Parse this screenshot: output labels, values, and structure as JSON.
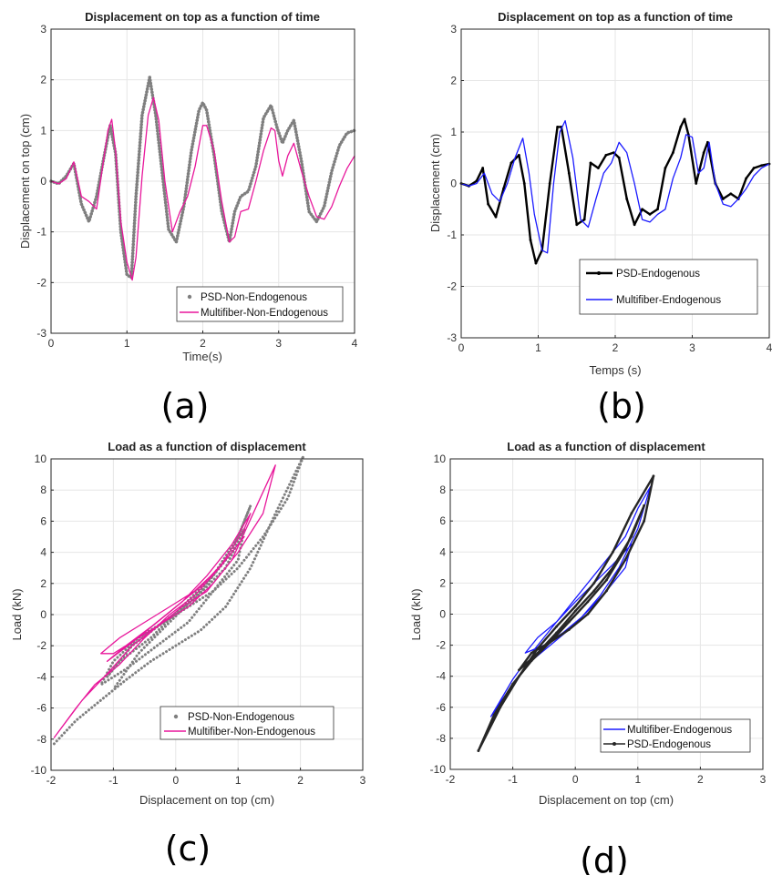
{
  "chart_data": [
    {
      "id": "a",
      "panel_label": "(a)",
      "type": "line",
      "title": "Displacement on top as a function of time",
      "xlabel": "Time(s)",
      "ylabel": "Displacement on top (cm)",
      "xlim": [
        0,
        4
      ],
      "ylim": [
        -3,
        3
      ],
      "xticks": [
        0,
        1,
        2,
        3,
        4
      ],
      "yticks": [
        -3,
        -2,
        -1,
        0,
        1,
        2,
        3
      ],
      "grid": true,
      "legend_position": "bottom-right",
      "series": [
        {
          "name": "PSD-Non-Endogenous",
          "color": "#7f7f7f",
          "style": "dotted-thick",
          "x": [
            0,
            0.1,
            0.2,
            0.3,
            0.4,
            0.5,
            0.6,
            0.7,
            0.78,
            0.85,
            0.92,
            1.0,
            1.06,
            1.12,
            1.2,
            1.3,
            1.38,
            1.47,
            1.55,
            1.65,
            1.75,
            1.85,
            1.95,
            2.0,
            2.05,
            2.15,
            2.25,
            2.35,
            2.42,
            2.5,
            2.6,
            2.7,
            2.8,
            2.9,
            2.98,
            3.05,
            3.12,
            3.2,
            3.3,
            3.4,
            3.5,
            3.6,
            3.7,
            3.8,
            3.9,
            4.0
          ],
          "values": [
            0,
            -0.05,
            0.1,
            0.35,
            -0.45,
            -0.8,
            -0.3,
            0.5,
            1.1,
            0.55,
            -1.0,
            -1.85,
            -1.9,
            -0.3,
            1.3,
            2.05,
            1.3,
            0.1,
            -0.95,
            -1.2,
            -0.5,
            0.6,
            1.4,
            1.55,
            1.4,
            0.5,
            -0.6,
            -1.2,
            -0.6,
            -0.3,
            -0.2,
            0.3,
            1.25,
            1.5,
            1.05,
            0.75,
            1.0,
            1.2,
            0.4,
            -0.6,
            -0.8,
            -0.5,
            0.2,
            0.7,
            0.95,
            1.0
          ]
        },
        {
          "name": "Multifiber-Non-Endogenous",
          "color": "#e8179b",
          "style": "solid",
          "x": [
            0,
            0.1,
            0.2,
            0.3,
            0.4,
            0.5,
            0.6,
            0.7,
            0.75,
            0.8,
            0.85,
            0.92,
            1.0,
            1.07,
            1.12,
            1.2,
            1.28,
            1.35,
            1.42,
            1.5,
            1.6,
            1.7,
            1.8,
            1.9,
            2.0,
            2.05,
            2.15,
            2.25,
            2.35,
            2.42,
            2.5,
            2.6,
            2.7,
            2.8,
            2.9,
            2.95,
            3.0,
            3.05,
            3.12,
            3.2,
            3.3,
            3.4,
            3.5,
            3.6,
            3.7,
            3.8,
            3.9,
            4.0
          ],
          "values": [
            0,
            -0.05,
            0.05,
            0.38,
            -0.3,
            -0.4,
            -0.55,
            0.5,
            1.0,
            1.22,
            0.6,
            -0.8,
            -1.6,
            -1.95,
            -1.5,
            0.1,
            1.3,
            1.65,
            1.2,
            0.0,
            -1.0,
            -0.6,
            -0.3,
            0.3,
            1.1,
            1.1,
            0.6,
            -0.4,
            -1.2,
            -1.1,
            -0.6,
            -0.55,
            0.0,
            0.6,
            1.05,
            1.0,
            0.4,
            0.1,
            0.5,
            0.75,
            0.2,
            -0.3,
            -0.7,
            -0.75,
            -0.5,
            -0.1,
            0.25,
            0.5
          ]
        }
      ]
    },
    {
      "id": "b",
      "panel_label": "(b)",
      "type": "line",
      "title": "Displacement on top as a function of time",
      "xlabel": "Temps (s)",
      "ylabel": "Displacement (cm)",
      "xlim": [
        0,
        4
      ],
      "ylim": [
        -3,
        3
      ],
      "xticks": [
        0,
        1,
        2,
        3,
        4
      ],
      "yticks": [
        -3,
        -2,
        -1,
        0,
        1,
        2,
        3
      ],
      "grid": true,
      "legend_position": "bottom-right",
      "series": [
        {
          "name": "PSD-Endogenous",
          "color": "#000000",
          "style": "solid-marker",
          "x": [
            0,
            0.1,
            0.2,
            0.28,
            0.35,
            0.45,
            0.55,
            0.65,
            0.75,
            0.82,
            0.9,
            0.97,
            1.05,
            1.15,
            1.25,
            1.3,
            1.4,
            1.5,
            1.6,
            1.68,
            1.78,
            1.88,
            1.98,
            2.05,
            2.15,
            2.25,
            2.35,
            2.45,
            2.55,
            2.65,
            2.75,
            2.85,
            2.9,
            2.95,
            3.05,
            3.15,
            3.2,
            3.3,
            3.4,
            3.5,
            3.6,
            3.7,
            3.8,
            3.9,
            4.0
          ],
          "values": [
            0,
            -0.05,
            0.05,
            0.3,
            -0.4,
            -0.65,
            -0.1,
            0.4,
            0.55,
            0.0,
            -1.1,
            -1.55,
            -1.3,
            0.0,
            1.1,
            1.1,
            0.2,
            -0.8,
            -0.7,
            0.4,
            0.3,
            0.55,
            0.6,
            0.5,
            -0.3,
            -0.8,
            -0.5,
            -0.6,
            -0.5,
            0.3,
            0.6,
            1.1,
            1.25,
            0.95,
            0.0,
            0.6,
            0.8,
            0.0,
            -0.3,
            -0.2,
            -0.3,
            0.1,
            0.3,
            0.35,
            0.38
          ]
        },
        {
          "name": "Multifiber-Endogenous",
          "color": "#1a1aff",
          "style": "solid",
          "x": [
            0,
            0.1,
            0.2,
            0.3,
            0.4,
            0.5,
            0.6,
            0.7,
            0.8,
            0.88,
            0.95,
            1.05,
            1.12,
            1.2,
            1.28,
            1.35,
            1.45,
            1.55,
            1.65,
            1.75,
            1.85,
            1.95,
            2.05,
            2.15,
            2.25,
            2.35,
            2.45,
            2.55,
            2.65,
            2.75,
            2.85,
            2.92,
            3.0,
            3.08,
            3.15,
            3.22,
            3.3,
            3.4,
            3.5,
            3.6,
            3.7,
            3.8,
            3.9,
            4.0
          ],
          "values": [
            0,
            -0.05,
            0.0,
            0.2,
            -0.2,
            -0.35,
            0.0,
            0.5,
            0.88,
            0.2,
            -0.6,
            -1.3,
            -1.35,
            0.0,
            1.0,
            1.22,
            0.5,
            -0.7,
            -0.85,
            -0.3,
            0.2,
            0.4,
            0.8,
            0.6,
            0.0,
            -0.7,
            -0.75,
            -0.6,
            -0.5,
            0.1,
            0.5,
            0.95,
            0.9,
            0.2,
            0.3,
            0.8,
            0.0,
            -0.4,
            -0.45,
            -0.3,
            -0.1,
            0.15,
            0.3,
            0.38
          ]
        }
      ]
    },
    {
      "id": "c",
      "panel_label": "(c)",
      "type": "scatter",
      "title": "Load as a function of displacement",
      "xlabel": "Displacement on top (cm)",
      "ylabel": "Load (kN)",
      "xlim": [
        -2,
        3
      ],
      "ylim": [
        -10,
        10
      ],
      "xticks": [
        -2,
        -1,
        0,
        1,
        2,
        3
      ],
      "yticks": [
        -10,
        -8,
        -6,
        -4,
        -2,
        0,
        2,
        4,
        6,
        8,
        10
      ],
      "grid": true,
      "legend_position": "bottom-right",
      "series": [
        {
          "name": "PSD-Non-Endogenous",
          "color": "#7f7f7f",
          "style": "dotted",
          "x": [
            -1.95,
            -1.6,
            -1.2,
            -0.8,
            -0.4,
            0.0,
            0.4,
            0.8,
            1.2,
            1.6,
            2.05,
            1.8,
            1.4,
            1.0,
            0.6,
            0.2,
            -0.2,
            -0.6,
            -1.0,
            -1.2,
            -0.8,
            -0.3,
            0.2,
            0.6,
            1.0,
            1.1,
            0.8,
            0.3,
            -0.2,
            -0.7,
            -1.1,
            -0.9,
            -0.4,
            0.1,
            0.6,
            1.0,
            1.2,
            0.9,
            0.4,
            -0.1,
            -0.6,
            -1.0
          ],
          "values": [
            -8.3,
            -6.8,
            -5.5,
            -4.2,
            -3.0,
            -2.0,
            -1.0,
            0.5,
            3.0,
            6.5,
            10.2,
            7.5,
            5.0,
            3.0,
            1.5,
            0.5,
            -0.5,
            -1.5,
            -3.0,
            -4.5,
            -3.5,
            -2.0,
            -0.5,
            1.5,
            3.5,
            5.5,
            3.0,
            1.0,
            -0.5,
            -2.0,
            -4.0,
            -3.0,
            -1.5,
            0.5,
            2.5,
            5.0,
            7.0,
            4.0,
            1.5,
            -0.5,
            -2.5,
            -4.8
          ]
        },
        {
          "name": "Multifiber-Non-Endogenous",
          "color": "#e8179b",
          "style": "solid",
          "x": [
            -1.95,
            -1.5,
            -1.1,
            -0.7,
            -0.3,
            0.1,
            0.5,
            0.9,
            1.3,
            1.6,
            1.4,
            1.0,
            0.6,
            0.2,
            -0.2,
            -0.6,
            -1.0,
            -1.2,
            -0.9,
            -0.5,
            -0.1,
            0.3,
            0.7,
            1.1,
            1.2,
            0.9,
            0.5,
            0.1,
            -0.3,
            -0.7,
            -1.1,
            -0.8,
            -0.4,
            0.0,
            0.4,
            0.8,
            1.1,
            0.7,
            0.3,
            -0.1,
            -0.5,
            -0.9,
            -1.3,
            -1.6,
            -1.95
          ],
          "values": [
            -7.9,
            -5.5,
            -3.8,
            -2.0,
            -0.8,
            0.5,
            1.5,
            3.5,
            7.0,
            9.6,
            6.5,
            4.0,
            2.0,
            0.5,
            -0.5,
            -1.5,
            -2.5,
            -2.5,
            -1.5,
            -0.5,
            0.5,
            1.5,
            3.0,
            5.5,
            6.5,
            4.5,
            2.5,
            0.8,
            -0.5,
            -1.8,
            -3.0,
            -2.0,
            -0.8,
            0.5,
            1.8,
            3.5,
            5.0,
            3.0,
            1.2,
            0.0,
            -1.5,
            -3.2,
            -4.5,
            -6.0,
            -7.9
          ]
        }
      ]
    },
    {
      "id": "d",
      "panel_label": "(d)",
      "type": "line",
      "title": "Load as a function of displacement",
      "xlabel": "Displacement on top (cm)",
      "ylabel": "Load (kN)",
      "xlim": [
        -2,
        3
      ],
      "ylim": [
        -10,
        10
      ],
      "xticks": [
        -2,
        -1,
        0,
        1,
        2,
        3
      ],
      "yticks": [
        -10,
        -8,
        -6,
        -4,
        -2,
        0,
        2,
        4,
        6,
        8,
        10
      ],
      "grid": true,
      "legend_position": "bottom-right",
      "series": [
        {
          "name": "Multifiber-Endogenous",
          "color": "#1a1aff",
          "style": "solid",
          "x": [
            -1.35,
            -1.0,
            -0.7,
            -0.4,
            -0.1,
            0.2,
            0.5,
            0.8,
            1.0,
            1.2,
            1.0,
            0.7,
            0.4,
            0.1,
            -0.2,
            -0.5,
            -0.8,
            -0.6,
            -0.3,
            0.0,
            0.3,
            0.6,
            0.9,
            0.8,
            0.5,
            0.2,
            -0.1,
            -0.4,
            -0.7,
            -1.0,
            -1.35
          ],
          "values": [
            -6.6,
            -4.2,
            -2.5,
            -1.0,
            0.5,
            2.0,
            3.5,
            5.0,
            6.8,
            8.2,
            5.5,
            3.0,
            1.2,
            -0.2,
            -1.2,
            -2.0,
            -2.5,
            -1.5,
            -0.5,
            0.8,
            2.0,
            3.2,
            4.5,
            3.0,
            1.5,
            0.2,
            -1.0,
            -2.0,
            -3.0,
            -4.5,
            -6.6
          ]
        },
        {
          "name": "PSD-Endogenous",
          "color": "#262626",
          "style": "solid-marker",
          "x": [
            -1.55,
            -1.2,
            -0.9,
            -0.6,
            -0.3,
            0.0,
            0.3,
            0.6,
            0.9,
            1.25,
            1.1,
            0.8,
            0.5,
            0.2,
            -0.1,
            -0.4,
            -0.7,
            -0.9,
            -0.6,
            -0.3,
            0.0,
            0.3,
            0.6,
            0.9,
            1.1,
            0.8,
            0.5,
            0.2,
            -0.1,
            -0.4,
            -0.7,
            -1.0,
            -1.3,
            -1.55
          ],
          "values": [
            -8.8,
            -6.0,
            -4.0,
            -2.2,
            -0.8,
            0.5,
            2.0,
            4.0,
            6.5,
            8.9,
            6.0,
            3.5,
            1.5,
            0.0,
            -1.0,
            -1.8,
            -2.5,
            -3.6,
            -2.5,
            -1.2,
            0.2,
            1.5,
            3.0,
            5.0,
            7.0,
            4.2,
            2.2,
            0.8,
            -0.5,
            -1.8,
            -3.0,
            -4.5,
            -6.5,
            -8.8
          ]
        }
      ]
    }
  ]
}
